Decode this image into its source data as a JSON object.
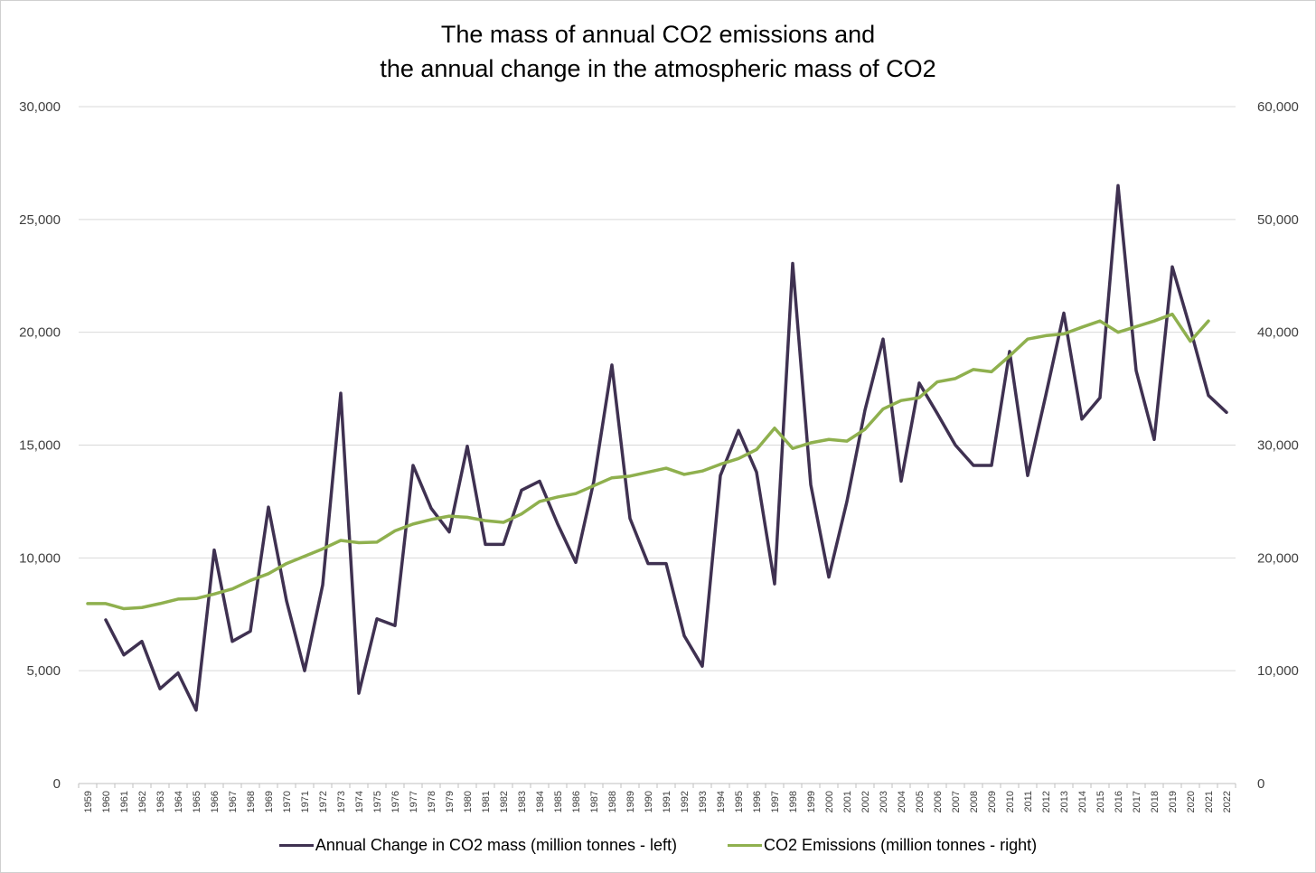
{
  "chart_data": {
    "type": "line",
    "title_lines": [
      "The mass of annual CO2 emissions and",
      "the annual change in the atmospheric mass of CO2"
    ],
    "x": [
      1959,
      1960,
      1961,
      1962,
      1963,
      1964,
      1965,
      1966,
      1967,
      1968,
      1969,
      1970,
      1971,
      1972,
      1973,
      1974,
      1975,
      1976,
      1977,
      1978,
      1979,
      1980,
      1981,
      1982,
      1983,
      1984,
      1985,
      1986,
      1987,
      1988,
      1989,
      1990,
      1991,
      1992,
      1993,
      1994,
      1995,
      1996,
      1997,
      1998,
      1999,
      2000,
      2001,
      2002,
      2003,
      2004,
      2005,
      2006,
      2007,
      2008,
      2009,
      2010,
      2011,
      2012,
      2013,
      2014,
      2015,
      2016,
      2017,
      2018,
      2019,
      2020,
      2021,
      2022
    ],
    "y_left": {
      "min": 0,
      "max": 30000,
      "ticks": [
        "0",
        "5,000",
        "10,000",
        "15,000",
        "20,000",
        "25,000",
        "30,000"
      ]
    },
    "y_right": {
      "min": 0,
      "max": 60000,
      "ticks": [
        "0",
        "10,000",
        "20,000",
        "30,000",
        "40,000",
        "50,000",
        "60,000"
      ]
    },
    "grid": true,
    "legend_position": "bottom",
    "series": [
      {
        "name": "Annual Change in CO2 mass (million tonnes - left)",
        "axis": "left",
        "color": "#3f3151",
        "values": [
          null,
          7250,
          5700,
          6300,
          4200,
          4900,
          3250,
          10350,
          6300,
          6750,
          12250,
          8100,
          5000,
          8800,
          17300,
          4000,
          7300,
          7000,
          14100,
          12200,
          11150,
          14950,
          10600,
          10600,
          13000,
          13400,
          11500,
          9800,
          13400,
          18550,
          11750,
          9750,
          9750,
          6550,
          5200,
          13650,
          15650,
          13800,
          8850,
          23050,
          13250,
          9150,
          12500,
          16550,
          19700,
          13400,
          17750,
          16400,
          15000,
          14100,
          14100,
          19150,
          13650,
          17200,
          20850,
          16150,
          17100,
          26500,
          18300,
          15250,
          22900,
          20150,
          17200,
          16450
        ]
      },
      {
        "name": "CO2 Emissions (million tonnes - right)",
        "axis": "right",
        "color": "#8fb04e",
        "values": [
          15950,
          15950,
          15500,
          15600,
          15950,
          16350,
          16400,
          16800,
          17250,
          18000,
          18600,
          19500,
          20150,
          20800,
          21550,
          21350,
          21400,
          22400,
          23000,
          23400,
          23700,
          23600,
          23300,
          23150,
          23900,
          25000,
          25400,
          25700,
          26400,
          27100,
          27250,
          27600,
          27950,
          27400,
          27700,
          28300,
          28800,
          29600,
          31500,
          29700,
          30200,
          30500,
          30350,
          31400,
          33200,
          33950,
          34200,
          35600,
          35900,
          36700,
          36500,
          37900,
          39400,
          39700,
          39850,
          40450,
          41000,
          40000,
          40500,
          41000,
          41600,
          39200,
          41000,
          null
        ]
      }
    ]
  }
}
